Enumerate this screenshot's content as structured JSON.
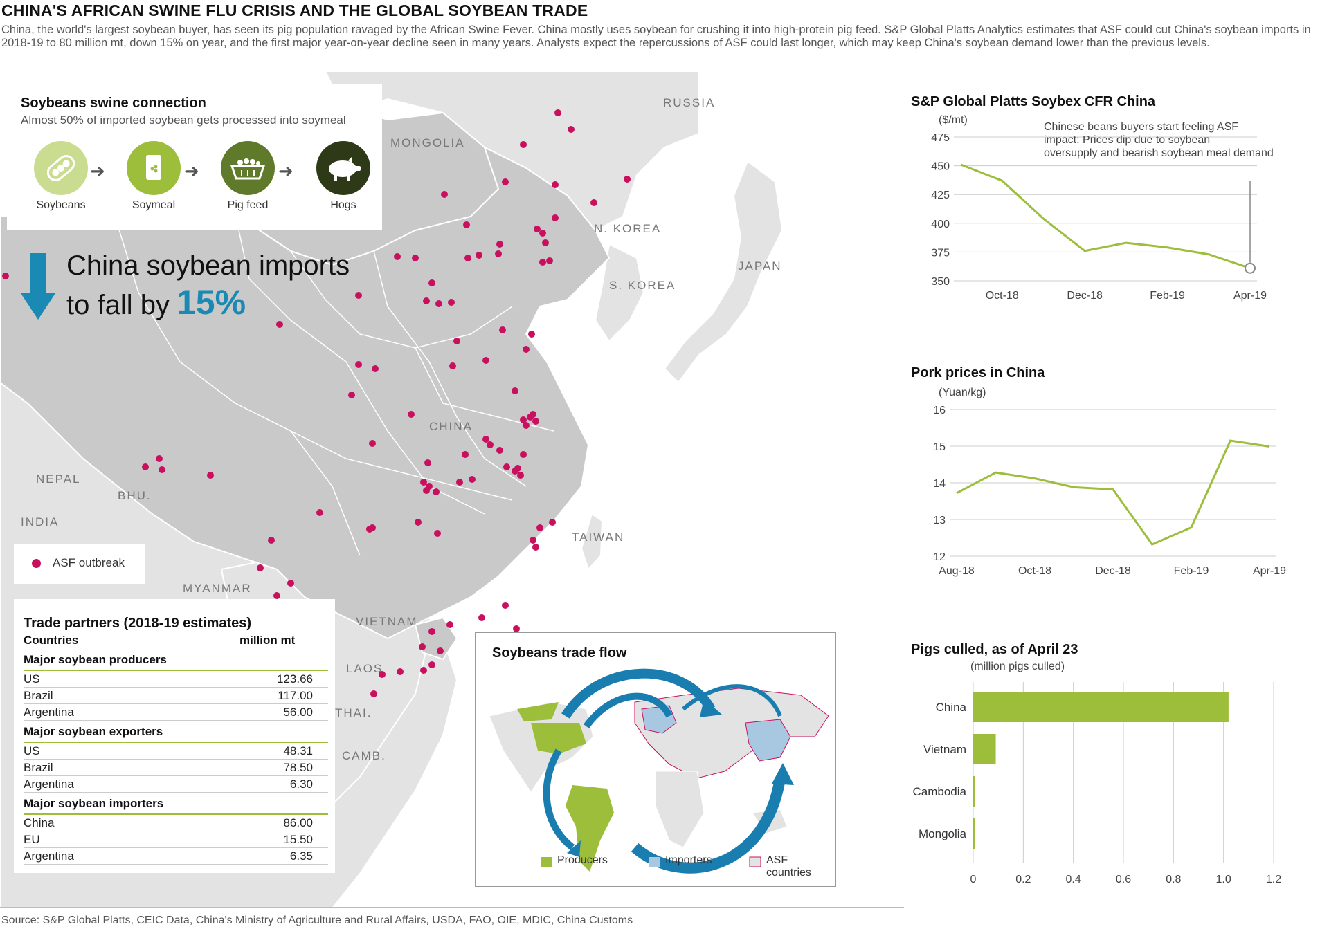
{
  "header": {
    "title": "CHINA'S AFRICAN SWINE FLU CRISIS AND THE GLOBAL SOYBEAN TRADE",
    "subtitle": "China, the world's largest soybean buyer, has seen its pig population ravaged by the African Swine Fever. China mostly uses soybean for crushing it into high-protein pig feed. S&P Global Platts Analytics estimates that ASF could cut China's soybean imports in 2018-19 to 80 million mt, down 15% on year, and the first major year-on-year decline seen in many years. Analysts expect the repercussions of ASF could last longer, which may keep China's soybean demand lower than the previous levels."
  },
  "map": {
    "labels": [
      "RUSSIA",
      "MONGOLIA",
      "N. KOREA",
      "S. KOREA",
      "JAPAN",
      "CHINA",
      "NEPAL",
      "BHU.",
      "INDIA",
      "MYANMAR",
      "TAIWAN",
      "VIETNAM",
      "LAOS",
      "THAI.",
      "CAMB."
    ],
    "legend_asf": "ASF outbreak",
    "colors": {
      "land": "#c9c9c9",
      "land_other": "#e3e3e3",
      "water": "#ffffff",
      "dot": "#c8105e"
    }
  },
  "connection": {
    "title": "Soybeans swine connection",
    "subtitle": "Almost 50% of imported soybean gets processed into soymeal",
    "steps": [
      {
        "label": "Soybeans",
        "icon": "soybean-pod-icon",
        "color": "#c9dc8f"
      },
      {
        "label": "Soymeal",
        "icon": "soymeal-bag-icon",
        "color": "#9cbe3a"
      },
      {
        "label": "Pig feed",
        "icon": "feed-trough-icon",
        "color": "#5f7a2a"
      },
      {
        "label": "Hogs",
        "icon": "pig-icon",
        "color": "#2e3a17"
      }
    ]
  },
  "imports": {
    "line1": "China soybean imports",
    "line2": "to fall by",
    "pct": "15%",
    "arrow_color": "#1a8ab5"
  },
  "trade": {
    "title": "Trade partners (2018-19 estimates)",
    "col_country": "Countries",
    "col_unit": "million mt",
    "groups": [
      {
        "name": "Major soybean producers",
        "rows": [
          {
            "country": "US",
            "value": "123.66"
          },
          {
            "country": "Brazil",
            "value": "117.00"
          },
          {
            "country": "Argentina",
            "value": "56.00"
          }
        ]
      },
      {
        "name": "Major soybean exporters",
        "rows": [
          {
            "country": "US",
            "value": "48.31"
          },
          {
            "country": "Brazil",
            "value": "78.50"
          },
          {
            "country": "Argentina",
            "value": "6.30"
          }
        ]
      },
      {
        "name": "Major soybean importers",
        "rows": [
          {
            "country": "China",
            "value": "86.00"
          },
          {
            "country": "EU",
            "value": "15.50"
          },
          {
            "country": "Argentina",
            "value": "6.35"
          }
        ]
      }
    ]
  },
  "flow": {
    "title": "Soybeans trade flow",
    "legend": [
      "Producers",
      "Importers",
      "ASF countries"
    ],
    "colors": {
      "producers": "#9cbe3a",
      "importers": "#a7c8e0",
      "asf": "#c8105e",
      "arrow": "#1a7db0"
    }
  },
  "chart_data": [
    {
      "type": "line",
      "title": "S&P Global Platts Soybex CFR China",
      "ylabel": "($/mt)",
      "ylim": [
        350,
        475
      ],
      "yticks": [
        350,
        375,
        400,
        425,
        450,
        475
      ],
      "x_ticks": [
        "Oct-18",
        "Dec-18",
        "Feb-19",
        "Apr-19"
      ],
      "x": [
        0,
        1,
        2,
        3,
        4,
        5,
        6,
        7
      ],
      "values": [
        451,
        437,
        404,
        376,
        383,
        379,
        373,
        361
      ],
      "tick_positions": [
        1,
        3,
        5,
        7
      ],
      "annotation": "Chinese beans buyers start feeling ASF impact: Prices dip due to soybean oversupply and bearish soybean meal demand",
      "color": "#9cbe3a"
    },
    {
      "type": "line",
      "title": "Pork prices in China",
      "ylabel": "(Yuan/kg)",
      "ylim": [
        12,
        16
      ],
      "yticks": [
        12,
        13,
        14,
        15,
        16
      ],
      "x_ticks": [
        "Aug-18",
        "Oct-18",
        "Dec-18",
        "Feb-19",
        "Apr-19"
      ],
      "x": [
        0,
        1,
        2,
        3,
        4,
        5,
        6,
        7,
        8
      ],
      "values": [
        13.72,
        14.28,
        14.12,
        13.88,
        13.82,
        12.32,
        12.78,
        15.15,
        14.99
      ],
      "tick_positions": [
        0,
        2,
        4,
        6,
        8
      ],
      "color": "#9cbe3a"
    },
    {
      "type": "bar",
      "orientation": "horizontal",
      "title": "Pigs culled, as of April 23",
      "xlabel": "(million pigs culled)",
      "categories": [
        "China",
        "Vietnam",
        "Cambodia",
        "Mongolia"
      ],
      "values": [
        1.02,
        0.09,
        0.002,
        0.003
      ],
      "xlim": [
        0,
        1.2
      ],
      "xticks": [
        "0",
        "0.2",
        "0.4",
        "0.6",
        "0.8",
        "1.0",
        "1.2"
      ],
      "color": "#9cbe3a"
    }
  ],
  "footer": {
    "source": "Source: S&P Global Platts, CEIC Data, China's Ministry of Agriculture and Rural Affairs, USDA, FAO, OIE, MDIC, China Customs"
  }
}
